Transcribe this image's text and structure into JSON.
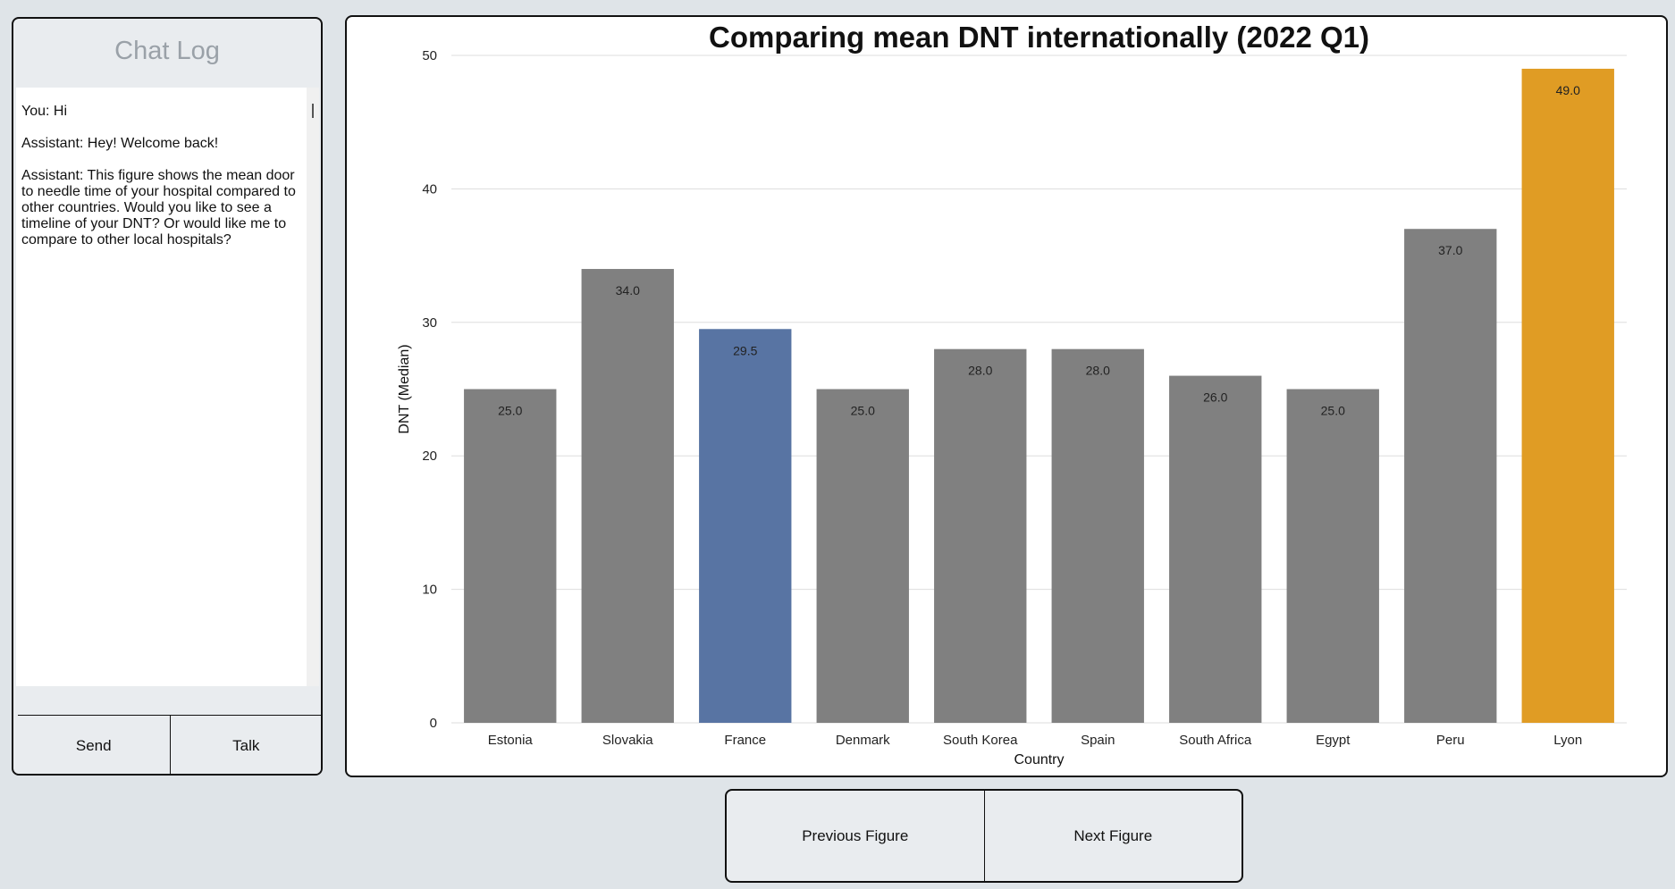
{
  "chat": {
    "title": "Chat Log",
    "messages": [
      "You: Hi",
      "Assistant: Hey! Welcome back!",
      "Assistant: This figure shows the mean door to needle time of your hospital compared to other countries. Would you like to see a timeline of your DNT? Or would like me to compare to other local hospitals?"
    ],
    "input_value": "",
    "send_label": "Send",
    "talk_label": "Talk"
  },
  "nav": {
    "prev_label": "Previous Figure",
    "next_label": "Next Figure"
  },
  "chart_data": {
    "type": "bar",
    "title": "Comparing mean DNT internationally (2022 Q1)",
    "xlabel": "Country",
    "ylabel": "DNT (Median)",
    "ylim": [
      0,
      50
    ],
    "yticks": [
      0,
      10,
      20,
      30,
      40,
      50
    ],
    "grid": true,
    "categories": [
      "Estonia",
      "Slovakia",
      "France",
      "Denmark",
      "South Korea",
      "Spain",
      "South Africa",
      "Egypt",
      "Peru",
      "Lyon"
    ],
    "values": [
      25.0,
      34.0,
      29.5,
      25.0,
      28.0,
      28.0,
      26.0,
      25.0,
      37.0,
      49.0
    ],
    "value_labels": [
      "25.0",
      "34.0",
      "29.5",
      "25.0",
      "28.0",
      "28.0",
      "26.0",
      "25.0",
      "37.0",
      "49.0"
    ],
    "colors": [
      "#808080",
      "#808080",
      "#5874a3",
      "#808080",
      "#808080",
      "#808080",
      "#808080",
      "#808080",
      "#808080",
      "#e09c24"
    ]
  }
}
